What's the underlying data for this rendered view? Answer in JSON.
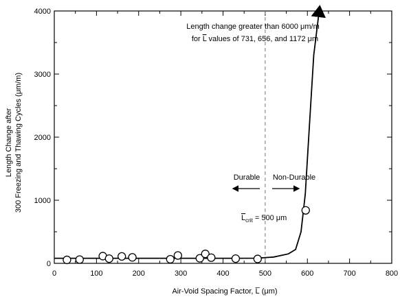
{
  "chart_data": {
    "type": "scatter",
    "title": "",
    "xlabel": "Air-Void Spacing Factor, L̅ (μm)",
    "ylabel_lines": [
      "Length Change after",
      "300 Freezing and Thawing Cycles (μm/m)"
    ],
    "xlim": [
      0,
      800
    ],
    "ylim": [
      0,
      4000
    ],
    "x_ticks": [
      "0",
      "100",
      "200",
      "300",
      "400",
      "500",
      "600",
      "700",
      "800"
    ],
    "y_ticks": [
      "0",
      "1000",
      "2000",
      "3000",
      "4000"
    ],
    "grid": false,
    "series": [
      {
        "points": [
          {
            "x": 30,
            "y": 55
          },
          {
            "x": 60,
            "y": 60
          },
          {
            "x": 115,
            "y": 115
          },
          {
            "x": 130,
            "y": 75
          },
          {
            "x": 160,
            "y": 110
          },
          {
            "x": 185,
            "y": 95
          },
          {
            "x": 275,
            "y": 65
          },
          {
            "x": 293,
            "y": 125
          },
          {
            "x": 345,
            "y": 80
          },
          {
            "x": 358,
            "y": 150
          },
          {
            "x": 372,
            "y": 90
          },
          {
            "x": 430,
            "y": 75
          },
          {
            "x": 482,
            "y": 70
          },
          {
            "x": 596,
            "y": 840
          }
        ]
      }
    ],
    "trend_curve": [
      {
        "x": 0,
        "y": 80
      },
      {
        "x": 100,
        "y": 80
      },
      {
        "x": 200,
        "y": 80
      },
      {
        "x": 300,
        "y": 80
      },
      {
        "x": 400,
        "y": 80
      },
      {
        "x": 480,
        "y": 82
      },
      {
        "x": 520,
        "y": 100
      },
      {
        "x": 555,
        "y": 150
      },
      {
        "x": 572,
        "y": 220
      },
      {
        "x": 585,
        "y": 500
      },
      {
        "x": 595,
        "y": 1100
      },
      {
        "x": 605,
        "y": 2200
      },
      {
        "x": 615,
        "y": 3300
      },
      {
        "x": 628,
        "y": 4000
      }
    ],
    "reference_line": {
      "x": 500,
      "style": "dashed"
    },
    "annotations": {
      "top_line1": "Length change greater than 6000 μm/m",
      "top_line2_prefix": "for ",
      "top_line2_L": "L",
      "top_line2_suffix": " values of 731, 656, and 1172 μm",
      "durable": "Durable",
      "non_durable": "Non-Durable",
      "lcrit_L": "L",
      "lcrit_sub": "crit",
      "lcrit_value": " = 500 μm"
    }
  }
}
